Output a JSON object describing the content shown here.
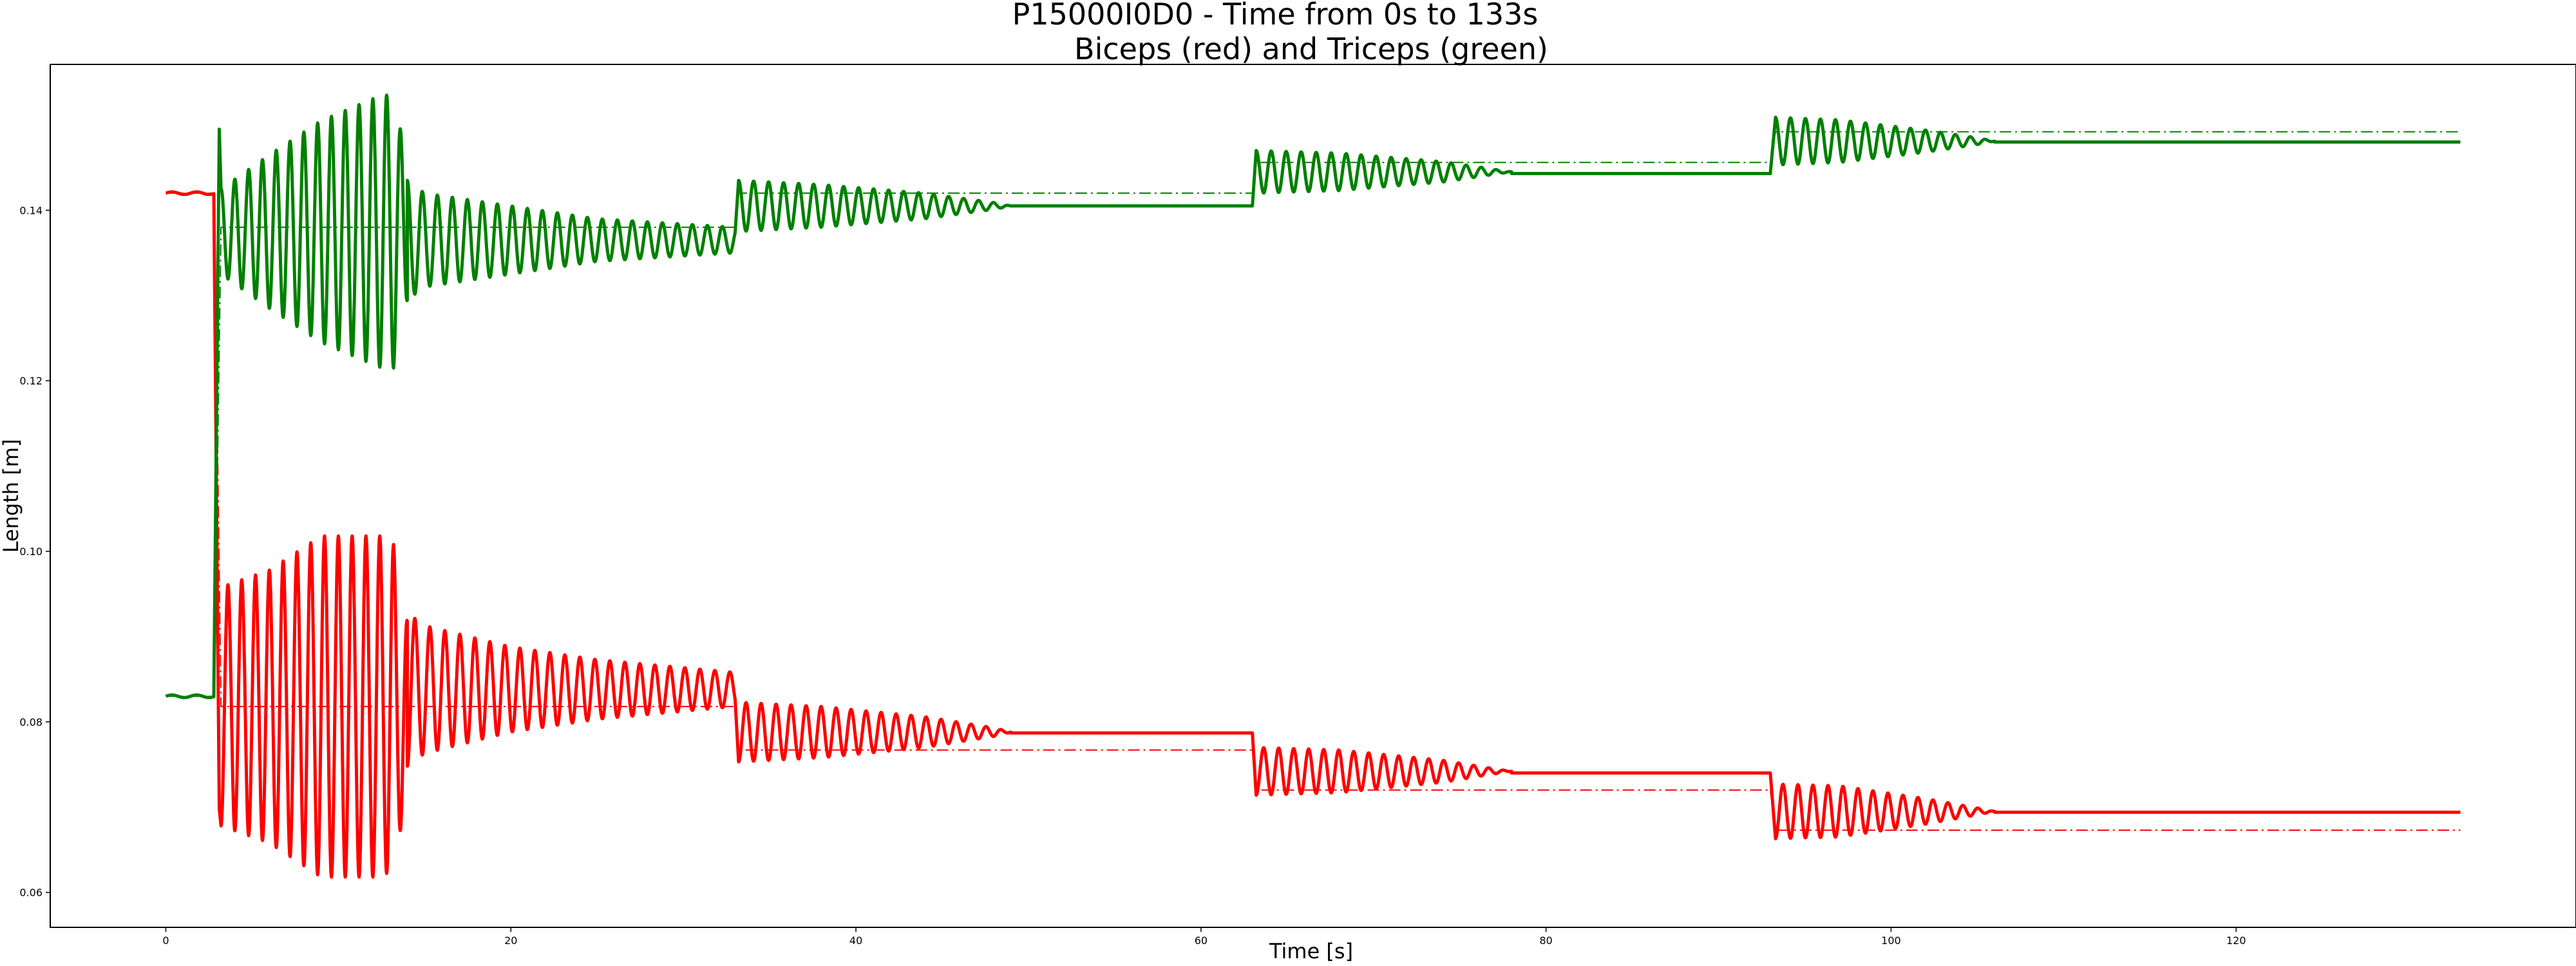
{
  "chart_data": {
    "type": "line",
    "title": "P15000I0D0 - Time from 0s to 133s",
    "subtitle": "Biceps (red) and Triceps (green)",
    "xlabel": "Time [s]",
    "ylabel": "Length [m]",
    "xlim": [
      -6.7,
      139.7
    ],
    "ylim": [
      0.0559,
      0.1571
    ],
    "xticks": [
      0,
      20,
      40,
      60,
      80,
      100,
      120
    ],
    "yticks": [
      0.06,
      0.08,
      0.1,
      0.12,
      0.14
    ],
    "ytick_labels": [
      "0.06",
      "0.08",
      "0.10",
      "0.12",
      "0.14"
    ],
    "grid": false,
    "legend": "none",
    "colors": {
      "biceps": "#ff0000",
      "triceps": "#008000"
    },
    "targets": {
      "biceps": [
        [
          0,
          0.142
        ],
        [
          2.8,
          0.142
        ],
        [
          3.2,
          0.0818
        ],
        [
          33,
          0.0818
        ],
        [
          33.2,
          0.0767
        ],
        [
          63,
          0.0767
        ],
        [
          63.2,
          0.072
        ],
        [
          93,
          0.072
        ],
        [
          93.3,
          0.0673
        ],
        [
          133,
          0.0673
        ]
      ],
      "triceps": [
        [
          0,
          0.083
        ],
        [
          2.8,
          0.083
        ],
        [
          3.2,
          0.138
        ],
        [
          33,
          0.138
        ],
        [
          33.2,
          0.142
        ],
        [
          63,
          0.142
        ],
        [
          63.2,
          0.1456
        ],
        [
          93,
          0.1456
        ],
        [
          93.3,
          0.1492
        ],
        [
          133,
          0.1492
        ]
      ]
    },
    "biceps_segments": [
      {
        "t0": 3.2,
        "t1": 14.0,
        "base": 0.0818,
        "peak_env": [
          [
            3.2,
            0.014
          ],
          [
            6,
            0.016
          ],
          [
            9,
            0.02
          ],
          [
            12.5,
            0.02
          ],
          [
            13.2,
            0.019
          ],
          [
            14,
            0.01
          ]
        ],
        "freq": 1.25
      },
      {
        "t0": 14.0,
        "t1": 33.0,
        "base": 0.0838,
        "peak_env": [
          [
            14,
            0.009
          ],
          [
            15,
            0.0075
          ],
          [
            20,
            0.005
          ],
          [
            25,
            0.0035
          ],
          [
            33,
            0.002
          ]
        ],
        "freq": 1.15
      },
      {
        "t0": 33.2,
        "t1": 49.0,
        "base": 0.0788,
        "peak_env": [
          [
            33.2,
            0.0035
          ],
          [
            38,
            0.003
          ],
          [
            44,
            0.0018
          ],
          [
            48,
            0.0005
          ],
          [
            49,
            0.0
          ]
        ],
        "freq": 1.15
      },
      {
        "t0": 49.0,
        "t1": 63.0,
        "base": 0.0787,
        "peak_env": [
          [
            49,
            0.0
          ],
          [
            63,
            0.0
          ]
        ],
        "freq": 1.0
      },
      {
        "t0": 63.2,
        "t1": 78.0,
        "base": 0.0742,
        "peak_env": [
          [
            63.2,
            0.0028
          ],
          [
            68,
            0.0025
          ],
          [
            74,
            0.0013
          ],
          [
            77,
            0.0003
          ],
          [
            78,
            0.0
          ]
        ],
        "freq": 1.15
      },
      {
        "t0": 78.0,
        "t1": 93.0,
        "base": 0.074,
        "peak_env": [
          [
            78,
            0.0
          ],
          [
            93,
            0.0
          ]
        ],
        "freq": 1.0
      },
      {
        "t0": 93.3,
        "t1": 106.0,
        "base": 0.0695,
        "peak_env": [
          [
            93.3,
            0.0032
          ],
          [
            97,
            0.003
          ],
          [
            102,
            0.0015
          ],
          [
            105,
            0.0004
          ],
          [
            106,
            0.0
          ]
        ],
        "freq": 1.15
      },
      {
        "t0": 106.0,
        "t1": 133.0,
        "base": 0.0694,
        "peak_env": [
          [
            106,
            0.0
          ],
          [
            133,
            0.0
          ]
        ],
        "freq": 1.0
      }
    ],
    "triceps_segments": [
      {
        "t0": 3.2,
        "t1": 14.0,
        "base": 0.1375,
        "peak_env": [
          [
            3.2,
            0.005
          ],
          [
            6,
            0.009
          ],
          [
            9,
            0.013
          ],
          [
            12.5,
            0.016
          ],
          [
            13.2,
            0.016
          ],
          [
            14,
            0.008
          ]
        ],
        "freq": 1.25
      },
      {
        "t0": 14.0,
        "t1": 33.0,
        "base": 0.1365,
        "peak_env": [
          [
            14,
            0.007
          ],
          [
            15,
            0.0055
          ],
          [
            20,
            0.004
          ],
          [
            25,
            0.0025
          ],
          [
            33,
            0.0015
          ]
        ],
        "freq": 1.15
      },
      {
        "t0": 33.2,
        "t1": 49.0,
        "base": 0.1405,
        "peak_env": [
          [
            33.2,
            0.003
          ],
          [
            38,
            0.0025
          ],
          [
            44,
            0.0015
          ],
          [
            48,
            0.0004
          ],
          [
            49,
            0.0
          ]
        ],
        "freq": 1.15
      },
      {
        "t0": 49.0,
        "t1": 63.0,
        "base": 0.1405,
        "peak_env": [
          [
            49,
            0.0
          ],
          [
            63,
            0.0
          ]
        ],
        "freq": 1.0
      },
      {
        "t0": 63.2,
        "t1": 78.0,
        "base": 0.1445,
        "peak_env": [
          [
            63.2,
            0.0025
          ],
          [
            68,
            0.0022
          ],
          [
            74,
            0.0012
          ],
          [
            77,
            0.0003
          ],
          [
            78,
            0.0
          ]
        ],
        "freq": 1.15
      },
      {
        "t0": 78.0,
        "t1": 93.0,
        "base": 0.1443,
        "peak_env": [
          [
            78,
            0.0
          ],
          [
            93,
            0.0
          ]
        ],
        "freq": 1.0
      },
      {
        "t0": 93.3,
        "t1": 106.0,
        "base": 0.1481,
        "peak_env": [
          [
            93.3,
            0.0028
          ],
          [
            97,
            0.0025
          ],
          [
            102,
            0.0013
          ],
          [
            105,
            0.0004
          ],
          [
            106,
            0.0
          ]
        ],
        "freq": 1.15
      },
      {
        "t0": 106.0,
        "t1": 133.0,
        "base": 0.148,
        "peak_env": [
          [
            106,
            0.0
          ],
          [
            133,
            0.0
          ]
        ],
        "freq": 1.0
      }
    ],
    "initial": {
      "biceps": {
        "t0": 0,
        "t1": 2.8,
        "value": 0.142
      },
      "triceps": {
        "t0": 0,
        "t1": 2.8,
        "value": 0.083
      }
    }
  }
}
